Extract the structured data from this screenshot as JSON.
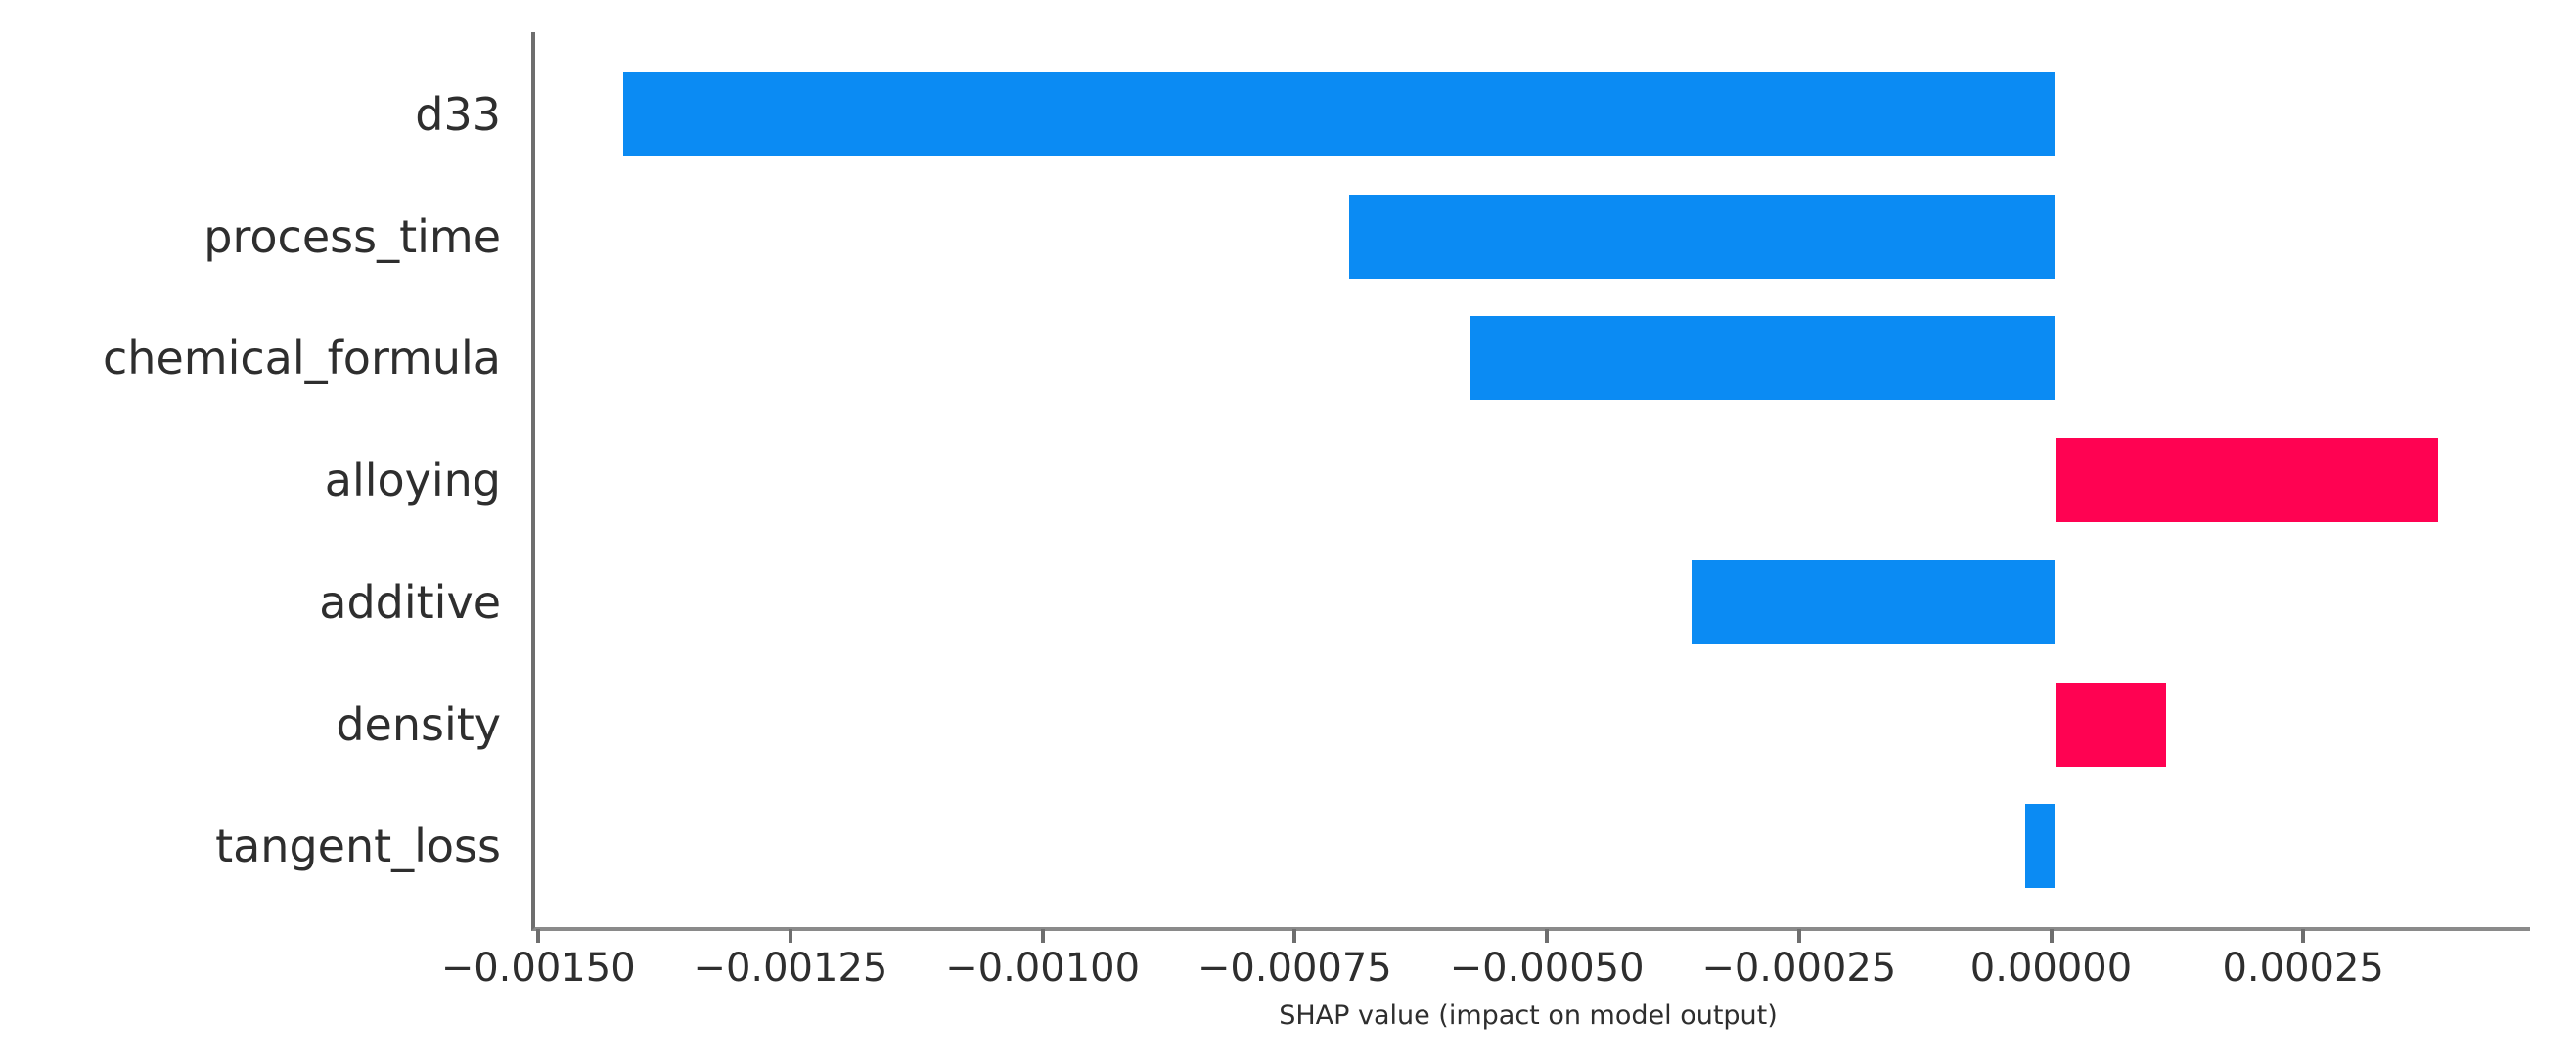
{
  "chart_data": {
    "type": "bar",
    "orientation": "horizontal",
    "title": "",
    "xlabel": "SHAP value (impact on model output)",
    "ylabel": "",
    "categories": [
      "d33",
      "process_time",
      "chemical_formula",
      "alloying",
      "additive",
      "density",
      "tangent_loss"
    ],
    "values": [
      -0.00142,
      -0.0007,
      -0.00058,
      0.00038,
      -0.00036,
      0.00011,
      -3e-05
    ],
    "series": [
      {
        "name": "SHAP value",
        "values": [
          -0.00142,
          -0.0007,
          -0.00058,
          0.00038,
          -0.00036,
          0.00011,
          -3e-05
        ]
      }
    ],
    "xlim": [
      -0.001507,
      0.000471
    ],
    "xticks": [
      {
        "value": -0.0015,
        "label": "−0.00150"
      },
      {
        "value": -0.00125,
        "label": "−0.00125"
      },
      {
        "value": -0.001,
        "label": "−0.00100"
      },
      {
        "value": -0.00075,
        "label": "−0.00075"
      },
      {
        "value": -0.0005,
        "label": "−0.00050"
      },
      {
        "value": -0.00025,
        "label": "−0.00025"
      },
      {
        "value": 0.0,
        "label": "0.00000"
      },
      {
        "value": 0.00025,
        "label": "0.00025"
      }
    ],
    "grid": false,
    "legend_position": "none",
    "colors": {
      "positive_bar": "#ff0252",
      "negative_bar": "#0b8bf3",
      "axis": "#6e6e6e",
      "text": "#2e2e2e"
    }
  }
}
